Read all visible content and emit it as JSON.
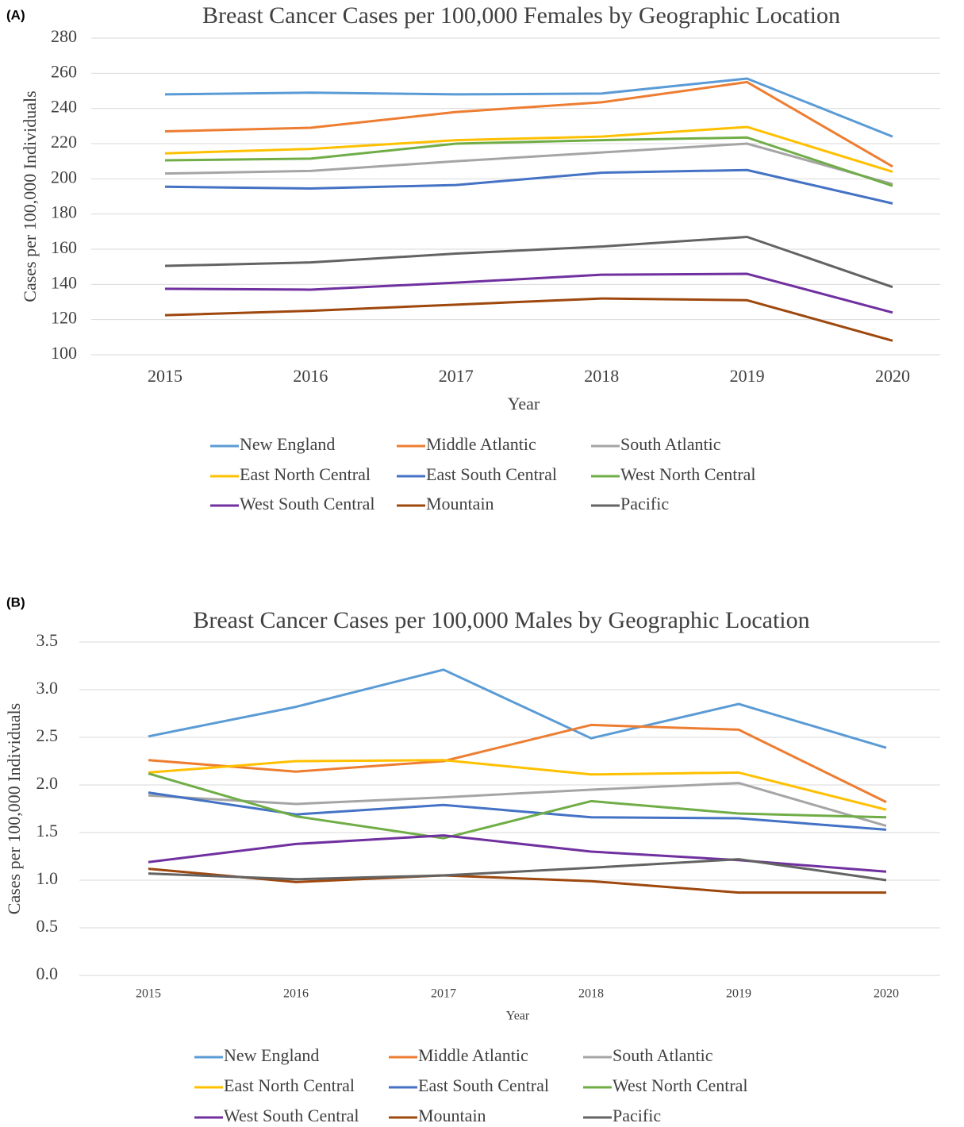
{
  "chart_data": [
    {
      "type": "line",
      "label": "(A)",
      "title": "Breast Cancer Cases per 100,000 Females by Geographic Location",
      "x_label": "Year",
      "y_label": "Cases per 100,000 Individuals",
      "categories": [
        "2015",
        "2016",
        "2017",
        "2018",
        "2019",
        "2020"
      ],
      "ylim": [
        100,
        280
      ],
      "yticks": [
        100,
        120,
        140,
        160,
        180,
        200,
        220,
        240,
        260,
        280
      ],
      "grid": true,
      "series": [
        {
          "name": "New England",
          "color": "#5b9bd5",
          "values": [
            248,
            249,
            248,
            248.5,
            257,
            224
          ]
        },
        {
          "name": "Middle Atlantic",
          "color": "#ed7d31",
          "values": [
            227,
            229,
            238,
            243.5,
            255,
            207
          ]
        },
        {
          "name": "South Atlantic",
          "color": "#a5a5a5",
          "values": [
            203,
            204.5,
            210,
            215,
            220,
            197
          ]
        },
        {
          "name": "East North Central",
          "color": "#ffc000",
          "values": [
            214.5,
            217,
            222,
            224,
            229.5,
            204
          ]
        },
        {
          "name": "East South Central",
          "color": "#4472c4",
          "values": [
            195.5,
            194.5,
            196.5,
            203.5,
            205,
            186
          ]
        },
        {
          "name": "West North Central",
          "color": "#70ad47",
          "values": [
            210.5,
            211.5,
            220,
            222,
            223.5,
            196
          ]
        },
        {
          "name": "West South Central",
          "color": "#7030a0",
          "values": [
            137.5,
            137,
            141,
            145.5,
            146,
            124
          ]
        },
        {
          "name": "Mountain",
          "color": "#9e480e",
          "values": [
            122.5,
            125,
            128.5,
            132,
            131,
            108
          ]
        },
        {
          "name": "Pacific",
          "color": "#636363",
          "values": [
            150.5,
            152.5,
            157.5,
            161.5,
            167,
            138.5
          ]
        }
      ]
    },
    {
      "type": "line",
      "label": "(B)",
      "title": "Breast Cancer Cases per 100,000 Males by Geographic Location",
      "x_label": "Year",
      "y_label": "Cases per 100,000 Individuals",
      "categories": [
        "2015",
        "2016",
        "2017",
        "2018",
        "2019",
        "2020"
      ],
      "ylim": [
        0,
        3.5
      ],
      "yticks": [
        {
          "value": 0,
          "label": "0.0"
        },
        0.5,
        {
          "value": 1,
          "label": "1.0"
        },
        1.5,
        {
          "value": 2,
          "label": "2.0"
        },
        2.5,
        {
          "value": 3,
          "label": "3.0"
        },
        3.5
      ],
      "grid": true,
      "series": [
        {
          "name": "New England",
          "color": "#5b9bd5",
          "values": [
            2.51,
            2.82,
            3.21,
            2.49,
            2.85,
            2.39
          ]
        },
        {
          "name": "Middle Atlantic",
          "color": "#ed7d31",
          "values": [
            2.26,
            2.14,
            2.25,
            2.63,
            2.58,
            1.82
          ]
        },
        {
          "name": "South Atlantic",
          "color": "#a5a5a5",
          "values": [
            1.89,
            1.8,
            1.87,
            1.95,
            2.02,
            1.57
          ]
        },
        {
          "name": "East North Central",
          "color": "#ffc000",
          "values": [
            2.13,
            2.25,
            2.26,
            2.11,
            2.13,
            1.74
          ]
        },
        {
          "name": "East South Central",
          "color": "#4472c4",
          "values": [
            1.92,
            1.69,
            1.79,
            1.66,
            1.65,
            1.53
          ]
        },
        {
          "name": "West North Central",
          "color": "#70ad47",
          "values": [
            2.12,
            1.67,
            1.44,
            1.83,
            1.7,
            1.66
          ]
        },
        {
          "name": "West South Central",
          "color": "#7030a0",
          "values": [
            1.19,
            1.38,
            1.47,
            1.3,
            1.21,
            1.09
          ]
        },
        {
          "name": "Mountain",
          "color": "#9e480e",
          "values": [
            1.12,
            0.98,
            1.05,
            0.99,
            0.87,
            0.87
          ]
        },
        {
          "name": "Pacific",
          "color": "#636363",
          "values": [
            1.07,
            1.01,
            1.05,
            1.13,
            1.22,
            1.0
          ]
        }
      ]
    }
  ]
}
